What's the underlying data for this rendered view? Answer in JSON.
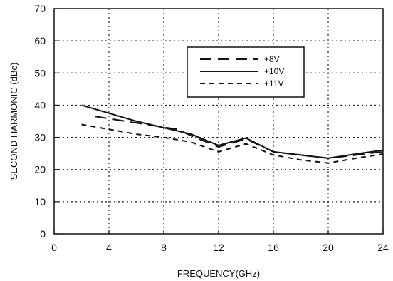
{
  "chart_data": {
    "type": "line",
    "xlabel": "FREQUENCY(GHz)",
    "ylabel": "SECOND HARMONIC (dBc)",
    "xlim": [
      0,
      24
    ],
    "ylim": [
      0,
      70
    ],
    "xticks": [
      0,
      4,
      8,
      12,
      16,
      20,
      24
    ],
    "yticks": [
      0,
      10,
      20,
      30,
      40,
      50,
      60,
      70
    ],
    "grid": true,
    "legend_position": "top-right",
    "series": [
      {
        "name": "+8V",
        "style": "long-dash",
        "color": "#111111",
        "x": [
          3,
          6,
          9,
          10,
          12,
          14,
          16,
          18,
          20,
          22,
          24
        ],
        "y": [
          36.5,
          34.5,
          32.5,
          30.5,
          27,
          29.5,
          25.5,
          24.5,
          23.5,
          24.5,
          25.5
        ]
      },
      {
        "name": "+10V",
        "style": "solid",
        "color": "#111111",
        "x": [
          2,
          4,
          6,
          8,
          10,
          12,
          14,
          16,
          18,
          20,
          22,
          24
        ],
        "y": [
          40,
          37.5,
          35,
          33,
          31,
          27.5,
          29.8,
          25.5,
          24.5,
          23.5,
          24.8,
          26
        ]
      },
      {
        "name": "+11V",
        "style": "short-dash",
        "color": "#111111",
        "x": [
          2,
          4,
          6,
          8,
          10,
          12,
          14,
          16,
          18,
          20,
          22,
          24
        ],
        "y": [
          34,
          32.5,
          31,
          30,
          28.5,
          25.5,
          28,
          24.5,
          23,
          22,
          23.5,
          24.8
        ]
      }
    ]
  }
}
